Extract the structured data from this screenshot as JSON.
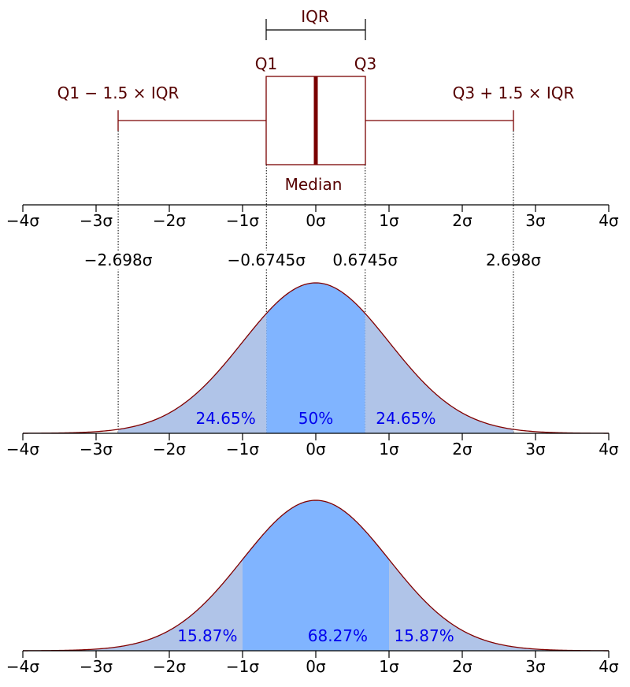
{
  "colors": {
    "box_stroke": "#7a0000",
    "median": "#7a0000",
    "curve_stroke": "#800000",
    "fill_outer": "#b0c4e8",
    "fill_inner": "#80b4ff",
    "pct_text": "#0000ee",
    "label_text": "#550000"
  },
  "boxplot": {
    "iqr_label": "IQR",
    "q1_label": "Q1",
    "q3_label": "Q3",
    "lower_whisker_label": "Q1 − 1.5 × IQR",
    "upper_whisker_label": "Q3 + 1.5 × IQR",
    "median_label": "Median",
    "q1": -0.6745,
    "q3": 0.6745,
    "median": 0,
    "lower_whisker": -2.698,
    "upper_whisker": 2.698
  },
  "axis": {
    "range": [
      -4,
      4
    ],
    "ticks": [
      -4,
      -3,
      -2,
      -1,
      0,
      1,
      2,
      3,
      4
    ],
    "tick_labels": [
      "−4σ",
      "−3σ",
      "−2σ",
      "−1σ",
      "0σ",
      "1σ",
      "2σ",
      "3σ",
      "4σ"
    ]
  },
  "markers": [
    {
      "value": -2.698,
      "label": "−2.698σ"
    },
    {
      "value": -0.6745,
      "label": "−0.6745σ"
    },
    {
      "value": 0.6745,
      "label": "0.6745σ"
    },
    {
      "value": 2.698,
      "label": "2.698σ"
    }
  ],
  "panel_iqr": {
    "regions": [
      {
        "from": -2.698,
        "to": -0.6745,
        "shade": "outer",
        "label": "24.65%",
        "label_at": -1.23
      },
      {
        "from": -0.6745,
        "to": 0.6745,
        "shade": "inner",
        "label": "50%",
        "label_at": 0
      },
      {
        "from": 0.6745,
        "to": 2.698,
        "shade": "outer",
        "label": "24.65%",
        "label_at": 1.23
      }
    ]
  },
  "panel_sigma": {
    "regions": [
      {
        "from": -4,
        "to": -1,
        "shade": "outer",
        "label": "15.87%",
        "label_at": -1.48
      },
      {
        "from": -1,
        "to": 1,
        "shade": "inner",
        "label": "68.27%",
        "label_at": 0.3
      },
      {
        "from": 1,
        "to": 4,
        "shade": "outer",
        "label": "15.87%",
        "label_at": 1.48
      }
    ]
  }
}
